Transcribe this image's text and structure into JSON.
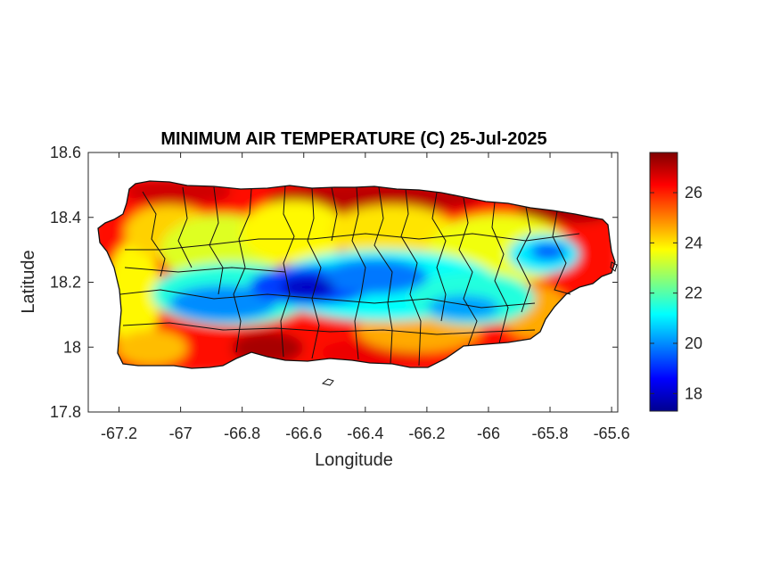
{
  "chart_data": {
    "type": "heatmap",
    "title": "MINIMUM AIR TEMPERATURE (C) 25-Jul-2025",
    "xlabel": "Longitude",
    "ylabel": "Latitude",
    "xlim": [
      -67.3,
      -65.58
    ],
    "ylim": [
      17.8,
      18.6
    ],
    "x_ticks": [
      -67.2,
      -67,
      -66.8,
      -66.6,
      -66.4,
      -66.2,
      -66,
      -65.8,
      -65.6
    ],
    "x_tick_labels": [
      "-67.2",
      "-67",
      "-66.8",
      "-66.6",
      "-66.4",
      "-66.2",
      "-66",
      "-65.8",
      "-65.6"
    ],
    "y_ticks": [
      17.8,
      18,
      18.2,
      18.4,
      18.6
    ],
    "y_tick_labels": [
      "17.8",
      "18",
      "18.2",
      "18.4",
      "18.6"
    ],
    "colorbar": {
      "colormap": "jet",
      "range": [
        17.3,
        27.6
      ],
      "ticks": [
        18,
        20,
        22,
        24,
        26
      ],
      "tick_labels": [
        "18",
        "20",
        "22",
        "24",
        "26"
      ]
    },
    "grid": false,
    "region": "Puerto Rico",
    "field_summary": {
      "coastal_min_temp_approx": 26,
      "central_mountains_min_temp_approx": 18.5,
      "coldest_location_approx": [
        -66.57,
        18.17
      ],
      "warmest_areas": "north coast, east coast, south coast near -66.7"
    }
  }
}
